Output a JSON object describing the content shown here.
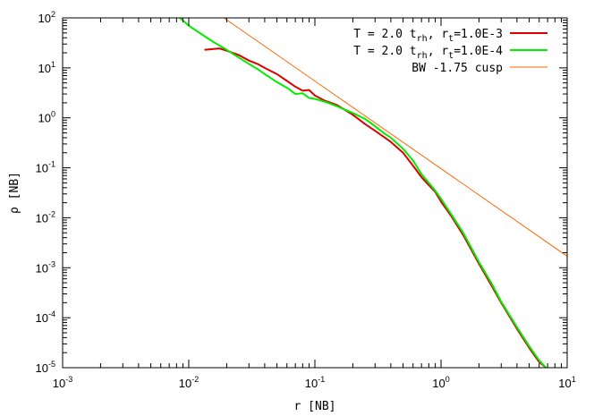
{
  "chart_data": {
    "type": "line",
    "title": "",
    "xlabel": "r [NB]",
    "ylabel": "ρ [NB]",
    "xscale": "log",
    "yscale": "log",
    "xlim": [
      0.001,
      10
    ],
    "ylim": [
      1e-05,
      100
    ],
    "grid": false,
    "legend_position": "top-right",
    "x_ticks": [
      {
        "base": "10",
        "exp": "-3",
        "value": 0.001
      },
      {
        "base": "10",
        "exp": "-2",
        "value": 0.01
      },
      {
        "base": "10",
        "exp": "-1",
        "value": 0.1
      },
      {
        "base": "10",
        "exp": "0",
        "value": 1
      },
      {
        "base": "10",
        "exp": "1",
        "value": 10
      }
    ],
    "y_ticks": [
      {
        "base": "10",
        "exp": "-5",
        "value": 1e-05
      },
      {
        "base": "10",
        "exp": "-4",
        "value": 0.0001
      },
      {
        "base": "10",
        "exp": "-3",
        "value": 0.001
      },
      {
        "base": "10",
        "exp": "-2",
        "value": 0.01
      },
      {
        "base": "10",
        "exp": "-1",
        "value": 0.1
      },
      {
        "base": "10",
        "exp": "0",
        "value": 1
      },
      {
        "base": "10",
        "exp": "1",
        "value": 10
      },
      {
        "base": "10",
        "exp": "2",
        "value": 100
      }
    ],
    "series": [
      {
        "name": "T = 2.0 t_rh, r_t=1.0E-3",
        "legend": {
          "pre": "T = 2.0 t",
          "sub1": "rh",
          "mid": ", r",
          "sub2": "t",
          "post": "=1.0E-3"
        },
        "color": "#dd0000",
        "x": [
          0.0135,
          0.0175,
          0.02,
          0.025,
          0.03,
          0.035,
          0.04,
          0.05,
          0.06,
          0.07,
          0.08,
          0.09,
          0.1,
          0.12,
          0.15,
          0.2,
          0.25,
          0.3,
          0.35,
          0.4,
          0.5,
          0.6,
          0.7,
          0.8,
          0.9,
          1.0,
          1.2,
          1.5,
          2.0,
          2.5,
          3.0,
          4.0,
          5.0,
          6.0,
          6.8
        ],
        "y": [
          23,
          24.5,
          22,
          18,
          14,
          12,
          10,
          7.5,
          5.5,
          4.2,
          3.5,
          3.6,
          2.8,
          2.2,
          1.8,
          1.15,
          0.75,
          0.55,
          0.42,
          0.33,
          0.2,
          0.11,
          0.065,
          0.045,
          0.033,
          0.021,
          0.011,
          0.0045,
          0.0012,
          0.00045,
          0.0002,
          6e-05,
          2.5e-05,
          1.3e-05,
          1e-05
        ]
      },
      {
        "name": "T = 2.0 t_rh, r_t=1.0E-4",
        "legend": {
          "pre": "T = 2.0 t",
          "sub1": "rh",
          "mid": ", r",
          "sub2": "t",
          "post": "=1.0E-4"
        },
        "color": "#00ee00",
        "x": [
          0.0085,
          0.01,
          0.013,
          0.016,
          0.02,
          0.025,
          0.03,
          0.035,
          0.04,
          0.05,
          0.06,
          0.07,
          0.08,
          0.09,
          0.1,
          0.12,
          0.15,
          0.2,
          0.25,
          0.3,
          0.35,
          0.4,
          0.5,
          0.6,
          0.7,
          0.8,
          0.9,
          1.0,
          1.2,
          1.5,
          2.0,
          2.5,
          3.0,
          4.0,
          5.0,
          6.0,
          6.8
        ],
        "y": [
          100,
          70,
          45,
          32,
          23,
          16,
          12,
          9.5,
          7.5,
          5.2,
          4.0,
          3.0,
          3.1,
          2.5,
          2.4,
          2.1,
          1.7,
          1.25,
          0.95,
          0.68,
          0.5,
          0.4,
          0.24,
          0.14,
          0.075,
          0.05,
          0.035,
          0.024,
          0.012,
          0.005,
          0.0013,
          0.0005,
          0.00021,
          6.5e-05,
          2.7e-05,
          1.4e-05,
          1e-05
        ]
      },
      {
        "name": "BW -1.75 cusp",
        "legend": {
          "pre": "BW -1.75 cusp",
          "sub1": "",
          "mid": "",
          "sub2": "",
          "post": ""
        },
        "color": "#ff6600",
        "x": [
          0.019,
          10
        ],
        "y": [
          100,
          0.0017
        ]
      }
    ]
  }
}
